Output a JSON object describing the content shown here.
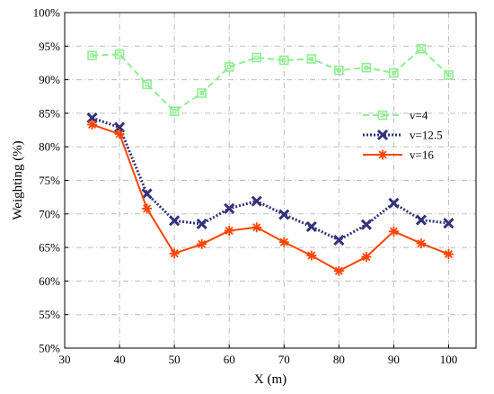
{
  "chart_data": {
    "type": "line",
    "xlabel": "X (m)",
    "ylabel": "Weighting (%)",
    "xlim": [
      30,
      105
    ],
    "ylim": [
      50,
      100
    ],
    "xticks": [
      30,
      40,
      50,
      60,
      70,
      80,
      90,
      100
    ],
    "yticks": [
      50,
      55,
      60,
      65,
      70,
      75,
      80,
      85,
      90,
      95,
      100
    ],
    "ytick_suffix": "%",
    "grid": true,
    "legend_position": "right",
    "series": [
      {
        "name": "v=4",
        "color": "#90ee90",
        "line_style": "dashed",
        "marker": "square",
        "x": [
          35,
          40,
          45,
          50,
          55,
          60,
          65,
          70,
          75,
          80,
          85,
          90,
          95,
          100
        ],
        "values": [
          93.6,
          93.8,
          89.3,
          85.3,
          88.0,
          91.9,
          93.3,
          92.9,
          93.1,
          91.4,
          91.8,
          91.0,
          94.6,
          90.7
        ]
      },
      {
        "name": "v=12.5",
        "color": "#33337a",
        "line_style": "dotted",
        "marker": "x",
        "x": [
          35,
          40,
          45,
          50,
          55,
          60,
          65,
          70,
          75,
          80,
          85,
          90,
          95,
          100
        ],
        "values": [
          84.3,
          82.9,
          73.0,
          69.0,
          68.5,
          70.8,
          71.9,
          69.9,
          68.1,
          66.1,
          68.4,
          71.6,
          69.1,
          68.6
        ]
      },
      {
        "name": "v=16",
        "color": "#ff4500",
        "line_style": "solid",
        "marker": "asterisk",
        "x": [
          35,
          40,
          45,
          50,
          55,
          60,
          65,
          70,
          75,
          80,
          85,
          90,
          95,
          100
        ],
        "values": [
          83.3,
          81.9,
          70.8,
          64.1,
          65.5,
          67.5,
          68.0,
          65.8,
          63.8,
          61.5,
          63.6,
          67.4,
          65.6,
          64.0
        ]
      }
    ]
  }
}
